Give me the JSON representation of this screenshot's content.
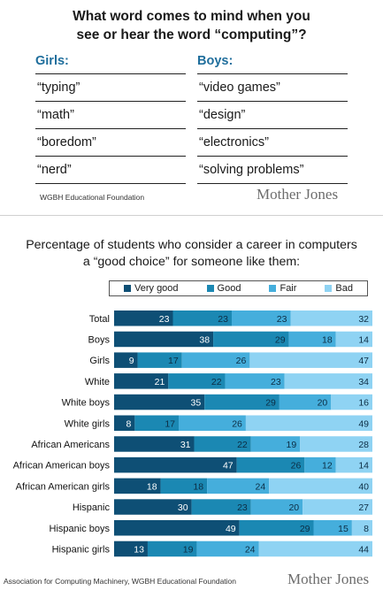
{
  "survey": {
    "title_line1": "What word comes to mind when you",
    "title_line2": "see or hear the word “computing”?",
    "girls": {
      "label": "Girls:",
      "words": [
        "“typing”",
        "“math”",
        "“boredom”",
        "“nerd”"
      ]
    },
    "boys": {
      "label": "Boys:",
      "words": [
        "“video games”",
        "“design”",
        "“electronics”",
        "“solving problems”"
      ]
    },
    "source": "WGBH Educational Foundation",
    "brand": "Mother Jones"
  },
  "chart_data": {
    "type": "bar",
    "orientation": "horizontal",
    "stacked": true,
    "title_line1": "Percentage of students who consider a career in computers",
    "title_line2": "a “good choice” for someone like them:",
    "categories": [
      "Total",
      "Boys",
      "Girls",
      "White",
      "White boys",
      "White girls",
      "African Americans",
      "African American boys",
      "African American girls",
      "Hispanic",
      "Hispanic boys",
      "Hispanic girls"
    ],
    "series": [
      {
        "name": "Very good",
        "color": "#0e4f75",
        "values": [
          23,
          38,
          9,
          21,
          35,
          8,
          31,
          47,
          18,
          30,
          49,
          13
        ]
      },
      {
        "name": "Good",
        "color": "#1b88b3",
        "values": [
          23,
          29,
          17,
          22,
          29,
          17,
          22,
          26,
          18,
          23,
          29,
          19
        ]
      },
      {
        "name": "Fair",
        "color": "#45aedc",
        "values": [
          23,
          18,
          26,
          23,
          20,
          26,
          19,
          12,
          24,
          20,
          15,
          24
        ]
      },
      {
        "name": "Bad",
        "color": "#8fd3f3",
        "values": [
          32,
          14,
          47,
          34,
          16,
          49,
          28,
          14,
          40,
          27,
          8,
          44
        ]
      }
    ],
    "legend_position": "top",
    "grid": false
  },
  "footer": {
    "source": "Association for Computing Machinery, WGBH Educational Foundation",
    "brand": "Mother Jones"
  }
}
